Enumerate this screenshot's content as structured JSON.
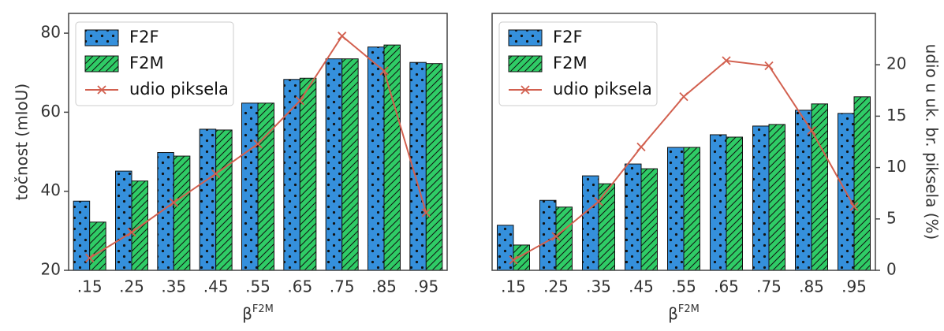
{
  "chart_data": [
    {
      "type": "bar",
      "categories": [
        ".15",
        ".25",
        ".35",
        ".45",
        ".55",
        ".65",
        ".75",
        ".85",
        ".95"
      ],
      "ylabel": "točnost (mIoU)",
      "xlabel": {
        "base": "β",
        "sup": "F2M"
      },
      "ylim": [
        20,
        85
      ],
      "yticks": [
        20,
        40,
        60,
        80
      ],
      "y2lim": [
        0,
        25
      ],
      "legend": "upper left",
      "series": [
        {
          "name": "F2F",
          "color": "#3590dc",
          "pattern": "dots",
          "values": [
            37.5,
            45.1,
            49.8,
            55.7,
            62.3,
            68.3,
            73.5,
            76.5,
            72.6
          ]
        },
        {
          "name": "F2M",
          "color": "#2fcc66",
          "pattern": "hatch",
          "values": [
            32.2,
            42.6,
            48.9,
            55.5,
            62.3,
            68.6,
            73.5,
            77.0,
            72.3
          ]
        },
        {
          "name": "udio piksela",
          "color": "#d2604f",
          "type": "line",
          "axis": "y2",
          "marker": "x",
          "values": [
            1.2,
            3.7,
            6.6,
            9.4,
            12.3,
            16.5,
            22.8,
            19.4,
            5.6
          ]
        }
      ]
    },
    {
      "type": "bar",
      "categories": [
        ".15",
        ".25",
        ".35",
        ".45",
        ".55",
        ".65",
        ".75",
        ".85",
        ".95"
      ],
      "y2label": "udio u uk. br. piksela (%)",
      "xlabel": {
        "base": "β",
        "sup": "F2M"
      },
      "ylim": [
        20,
        85
      ],
      "y2lim": [
        0,
        25
      ],
      "y2ticks": [
        0,
        5,
        10,
        15,
        20
      ],
      "legend": "upper left",
      "series": [
        {
          "name": "F2F",
          "color": "#3590dc",
          "pattern": "dots",
          "values": [
            31.4,
            37.7,
            43.9,
            46.9,
            51.1,
            54.3,
            56.5,
            60.5,
            59.7
          ]
        },
        {
          "name": "F2M",
          "color": "#2fcc66",
          "pattern": "hatch",
          "values": [
            26.4,
            36.0,
            41.9,
            45.7,
            51.1,
            53.7,
            56.9,
            62.1,
            63.9
          ]
        },
        {
          "name": "udio piksela",
          "color": "#d2604f",
          "type": "line",
          "axis": "y2",
          "marker": "x",
          "values": [
            1.0,
            3.3,
            6.7,
            12.0,
            16.9,
            20.4,
            19.9,
            13.6,
            6.2
          ]
        }
      ]
    }
  ]
}
